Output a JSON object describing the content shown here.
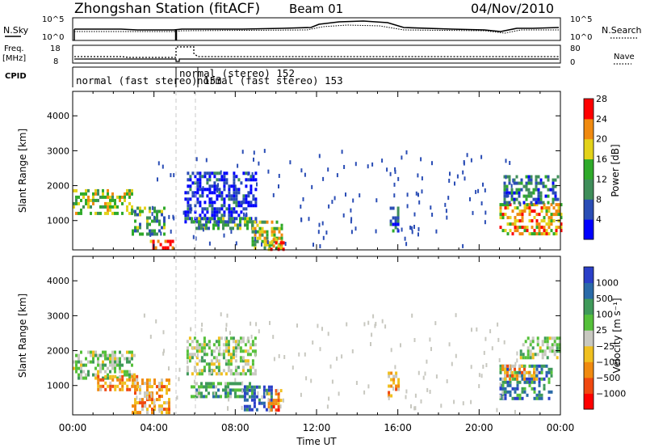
{
  "header": {
    "station": "Zhongshan Station (fitACF)",
    "beam": "Beam 01",
    "date": "04/Nov/2010"
  },
  "top_panels": {
    "nsky_label": "N.Sky",
    "nsky_tick_hi": "10^5",
    "nsky_tick_lo": "10^0",
    "nsearch_label": "N.Search",
    "nsearch_tick_hi": "10^5",
    "nsearch_tick_lo": "10^0",
    "freq_label_1": "Freq.",
    "freq_label_2": "[MHz]",
    "freq_tick_hi": "18",
    "freq_tick_lo": "8",
    "nave_label": "Nave",
    "nave_tick_hi": "80",
    "nave_tick_lo": "0",
    "cpid_label": "CPID",
    "cpid_mode_1": "normal (fast stereo) 153",
    "cpid_mode_2": "normal (stereo) 152",
    "cpid_mode_3": "normal (fast stereo) 153"
  },
  "chart_data": [
    {
      "type": "heatmap",
      "name": "power",
      "ylabel": "Slant Range [km]",
      "ylim": [
        160,
        4700
      ],
      "yticks": [
        "1000",
        "2000",
        "3000",
        "4000"
      ],
      "yticks_values": [
        1000,
        2000,
        3000,
        4000
      ],
      "xlim_hours": [
        0,
        24
      ],
      "colorbar_label": "Power [dB]",
      "colorbar_ticks": [
        "4",
        "8",
        "12",
        "16",
        "20",
        "24",
        "28"
      ],
      "colorbar_colors": [
        "#0000ff",
        "#2a4db5",
        "#3f8e5a",
        "#2faa2a",
        "#e3d21a",
        "#f08a10",
        "#ff0000"
      ],
      "regions": [
        {
          "x0": 0.0,
          "x1": 2.9,
          "y0": 1200,
          "y1": 1900,
          "level": 4
        },
        {
          "x0": 2.9,
          "x1": 4.5,
          "y0": 600,
          "y1": 1400,
          "level": 3
        },
        {
          "x0": 3.8,
          "x1": 5.0,
          "y0": 200,
          "y1": 450,
          "level": 6
        },
        {
          "x0": 5.5,
          "x1": 9.0,
          "y0": 1000,
          "y1": 2400,
          "level": 1
        },
        {
          "x0": 5.8,
          "x1": 8.8,
          "y0": 800,
          "y1": 1100,
          "level": 3
        },
        {
          "x0": 8.8,
          "x1": 10.3,
          "y0": 200,
          "y1": 1000,
          "level": 4
        },
        {
          "x0": 9.6,
          "x1": 10.4,
          "y0": 200,
          "y1": 500,
          "level": 6
        },
        {
          "x0": 15.6,
          "x1": 16.0,
          "y0": 700,
          "y1": 1400,
          "level": 2
        },
        {
          "x0": 21.0,
          "x1": 24.0,
          "y0": 600,
          "y1": 1500,
          "level": 5
        },
        {
          "x0": 21.2,
          "x1": 23.9,
          "y0": 1500,
          "y1": 2300,
          "level": 2
        }
      ]
    },
    {
      "type": "heatmap",
      "name": "velocity",
      "ylabel": "Slant Range [km]",
      "ylim": [
        160,
        4700
      ],
      "yticks": [
        "1000",
        "2000",
        "3000",
        "4000"
      ],
      "yticks_values": [
        1000,
        2000,
        3000,
        4000
      ],
      "xlim_hours": [
        0,
        24
      ],
      "xticks": [
        "00:00",
        "04:00",
        "08:00",
        "12:00",
        "16:00",
        "20:00",
        "00:00"
      ],
      "xticks_hours": [
        0,
        4,
        8,
        12,
        16,
        20,
        24
      ],
      "xlabel": "Time UT",
      "colorbar_label": "Velocity [m s⁻¹]",
      "colorbar_ticks": [
        "1000",
        "500",
        "100",
        "25",
        "−25",
        "−100",
        "−500",
        "−1000"
      ],
      "colorbar_colors": [
        "#2a3fc8",
        "#2a6aa8",
        "#3f9a5a",
        "#55c03a",
        "#c8c8c0",
        "#f0c020",
        "#f08a10",
        "#f04810",
        "#ff0000"
      ],
      "regions": [
        {
          "x0": 0.0,
          "x1": 3.0,
          "y0": 1200,
          "y1": 2000,
          "level": 4
        },
        {
          "x0": 1.2,
          "x1": 3.2,
          "y0": 900,
          "y1": 1300,
          "level": 6
        },
        {
          "x0": 2.9,
          "x1": 4.8,
          "y0": 200,
          "y1": 1200,
          "level": 6
        },
        {
          "x0": 5.6,
          "x1": 9.0,
          "y0": 1300,
          "y1": 2400,
          "level": 4
        },
        {
          "x0": 5.8,
          "x1": 8.8,
          "y0": 700,
          "y1": 1100,
          "level": 3
        },
        {
          "x0": 8.3,
          "x1": 9.8,
          "y0": 300,
          "y1": 1000,
          "level": 1
        },
        {
          "x0": 9.6,
          "x1": 10.3,
          "y0": 300,
          "y1": 900,
          "level": 7
        },
        {
          "x0": 15.5,
          "x1": 16.0,
          "y0": 700,
          "y1": 1400,
          "level": 6
        },
        {
          "x0": 21.0,
          "x1": 23.6,
          "y0": 600,
          "y1": 1600,
          "level": 2
        },
        {
          "x0": 21.1,
          "x1": 22.9,
          "y0": 1200,
          "y1": 1600,
          "level": 6
        },
        {
          "x0": 22.0,
          "x1": 24.0,
          "y0": 1800,
          "y1": 2400,
          "level": 4
        }
      ]
    }
  ]
}
